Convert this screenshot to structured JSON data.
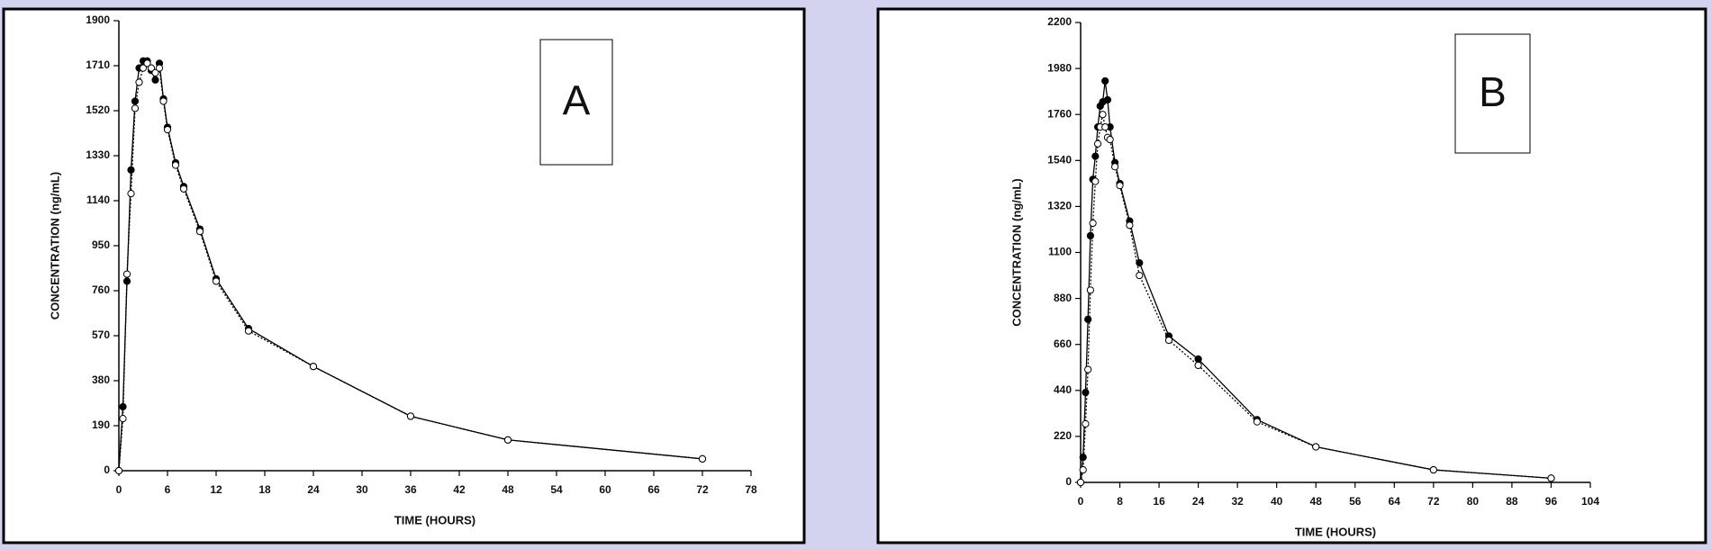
{
  "chart_data": [
    {
      "type": "line",
      "annotation": "A",
      "x": [
        0,
        0.5,
        1,
        1.5,
        2,
        2.5,
        3,
        3.5,
        4,
        4.5,
        5,
        5.5,
        6,
        7,
        8,
        10,
        12,
        16,
        24,
        36,
        48,
        72
      ],
      "series": [
        {
          "color": "#000000",
          "marker": "filled",
          "line_style": "solid",
          "values": [
            0,
            270,
            800,
            1270,
            1560,
            1700,
            1730,
            1730,
            1690,
            1650,
            1720,
            1570,
            1450,
            1300,
            1200,
            1020,
            810,
            600,
            440,
            230,
            130,
            50
          ]
        },
        {
          "color": "#000000",
          "marker": "open",
          "line_style": "dotted",
          "values": [
            0,
            220,
            830,
            1170,
            1530,
            1640,
            1700,
            1720,
            1700,
            1680,
            1700,
            1560,
            1440,
            1290,
            1190,
            1010,
            800,
            590,
            440,
            230,
            130,
            50
          ]
        }
      ],
      "x_label": "TIME (HOURS)",
      "y_label": "CONCENTRATION (ng/mL)",
      "xlim": [
        0,
        78
      ],
      "xticks": [
        0,
        6,
        12,
        18,
        24,
        30,
        36,
        42,
        48,
        54,
        60,
        66,
        72,
        78
      ],
      "ylim": [
        0,
        1900
      ],
      "yticks": [
        0,
        190,
        380,
        570,
        760,
        950,
        1140,
        1330,
        1520,
        1710,
        1900
      ]
    },
    {
      "type": "line",
      "annotation": "B",
      "x": [
        0,
        0.5,
        1,
        1.5,
        2,
        2.5,
        3,
        3.5,
        4,
        4.5,
        5,
        5.5,
        6,
        7,
        8,
        10,
        12,
        18,
        24,
        36,
        48,
        72,
        96
      ],
      "series": [
        {
          "color": "#000000",
          "marker": "filled",
          "line_style": "solid",
          "values": [
            0,
            120,
            430,
            780,
            1180,
            1450,
            1560,
            1700,
            1800,
            1820,
            1920,
            1830,
            1700,
            1530,
            1430,
            1250,
            1050,
            700,
            590,
            300,
            170,
            60,
            20
          ]
        },
        {
          "color": "#000000",
          "marker": "open",
          "line_style": "dotted",
          "values": [
            0,
            60,
            280,
            540,
            920,
            1240,
            1440,
            1620,
            1700,
            1760,
            1700,
            1650,
            1640,
            1510,
            1420,
            1230,
            990,
            680,
            560,
            290,
            170,
            60,
            20
          ]
        }
      ],
      "x_label": "TIME (HOURS)",
      "y_label": "CONCENTRATION (ng/mL)",
      "xlim": [
        0,
        104
      ],
      "xticks": [
        0,
        8,
        16,
        24,
        32,
        40,
        48,
        56,
        64,
        72,
        80,
        88,
        96,
        104
      ],
      "ylim": [
        0,
        2200
      ],
      "yticks": [
        0,
        220,
        440,
        660,
        880,
        1100,
        1320,
        1540,
        1760,
        1980,
        2200
      ]
    }
  ]
}
